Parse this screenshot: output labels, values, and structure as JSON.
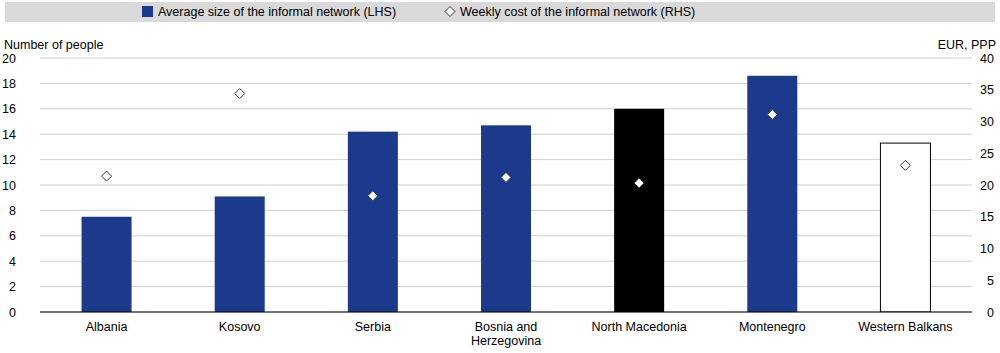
{
  "chart_data": {
    "type": "bar",
    "y_label": "Number of people",
    "y2_label": "EUR, PPP",
    "categories": [
      "Albania",
      "Kosovo",
      "Serbia",
      "Bosnia and Herzegovina",
      "North Macedonia",
      "Montenegro",
      "Western Balkans"
    ],
    "series": [
      {
        "name": "Average size of the informal network (LHS)",
        "type": "bar",
        "colors": [
          "#1b3a8c",
          "#1b3a8c",
          "#1b3a8c",
          "#1b3a8c",
          "#000000",
          "#1b3a8c",
          "#ffffff"
        ],
        "values": [
          7.5,
          9.1,
          14.2,
          14.7,
          16.0,
          18.6,
          13.3
        ]
      },
      {
        "name": "Weekly cost of the informal network (RHS)",
        "type": "scatter",
        "marker": "diamond",
        "axis": "y2",
        "color": "#ffffff",
        "values": [
          21.4,
          34.4,
          18.3,
          21.2,
          20.3,
          31.1,
          23.1
        ]
      }
    ],
    "ylim": [
      0,
      20
    ],
    "yticks": [
      0,
      2,
      4,
      6,
      8,
      10,
      12,
      14,
      16,
      18,
      20
    ],
    "y2lim": [
      0,
      40
    ],
    "y2ticks": [
      0,
      5,
      10,
      15,
      20,
      25,
      30,
      35,
      40
    ],
    "grid": true,
    "legend": "top"
  }
}
